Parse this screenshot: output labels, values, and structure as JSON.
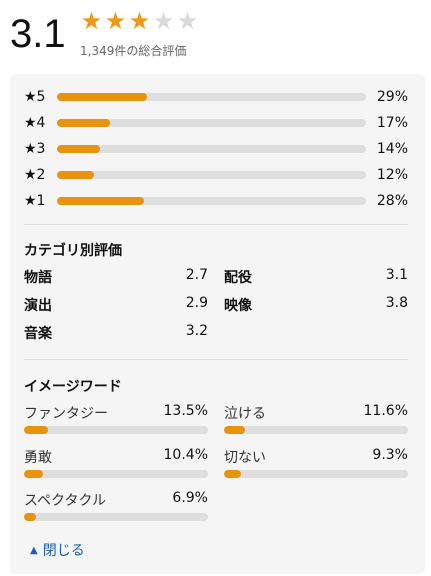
{
  "rating": {
    "score": "3.1",
    "stars_filled": 3,
    "stars_total": 5,
    "count_text": "1,349件の総合評価"
  },
  "distribution": [
    {
      "label": "★5",
      "percent": 29,
      "percent_text": "29%"
    },
    {
      "label": "★4",
      "percent": 17,
      "percent_text": "17%"
    },
    {
      "label": "★3",
      "percent": 14,
      "percent_text": "14%"
    },
    {
      "label": "★2",
      "percent": 12,
      "percent_text": "12%"
    },
    {
      "label": "★1",
      "percent": 28,
      "percent_text": "28%"
    }
  ],
  "categories": {
    "title": "カテゴリ別評価",
    "items": [
      {
        "name": "物語",
        "value": "2.7"
      },
      {
        "name": "配役",
        "value": "3.1"
      },
      {
        "name": "演出",
        "value": "2.9"
      },
      {
        "name": "映像",
        "value": "3.8"
      },
      {
        "name": "音楽",
        "value": "3.2"
      }
    ]
  },
  "keywords": {
    "title": "イメージワード",
    "items": [
      {
        "name": "ファンタジー",
        "percent": 13.5,
        "percent_text": "13.5%"
      },
      {
        "name": "泣ける",
        "percent": 11.6,
        "percent_text": "11.6%"
      },
      {
        "name": "勇敢",
        "percent": 10.4,
        "percent_text": "10.4%"
      },
      {
        "name": "切ない",
        "percent": 9.3,
        "percent_text": "9.3%"
      },
      {
        "name": "スペクタクル",
        "percent": 6.9,
        "percent_text": "6.9%"
      }
    ]
  },
  "close_label": "閉じる",
  "colors": {
    "accent": "#e8920e",
    "star": "#f09a14",
    "link": "#1a5fb4"
  },
  "icons": {
    "close": "triangle-up-icon"
  }
}
